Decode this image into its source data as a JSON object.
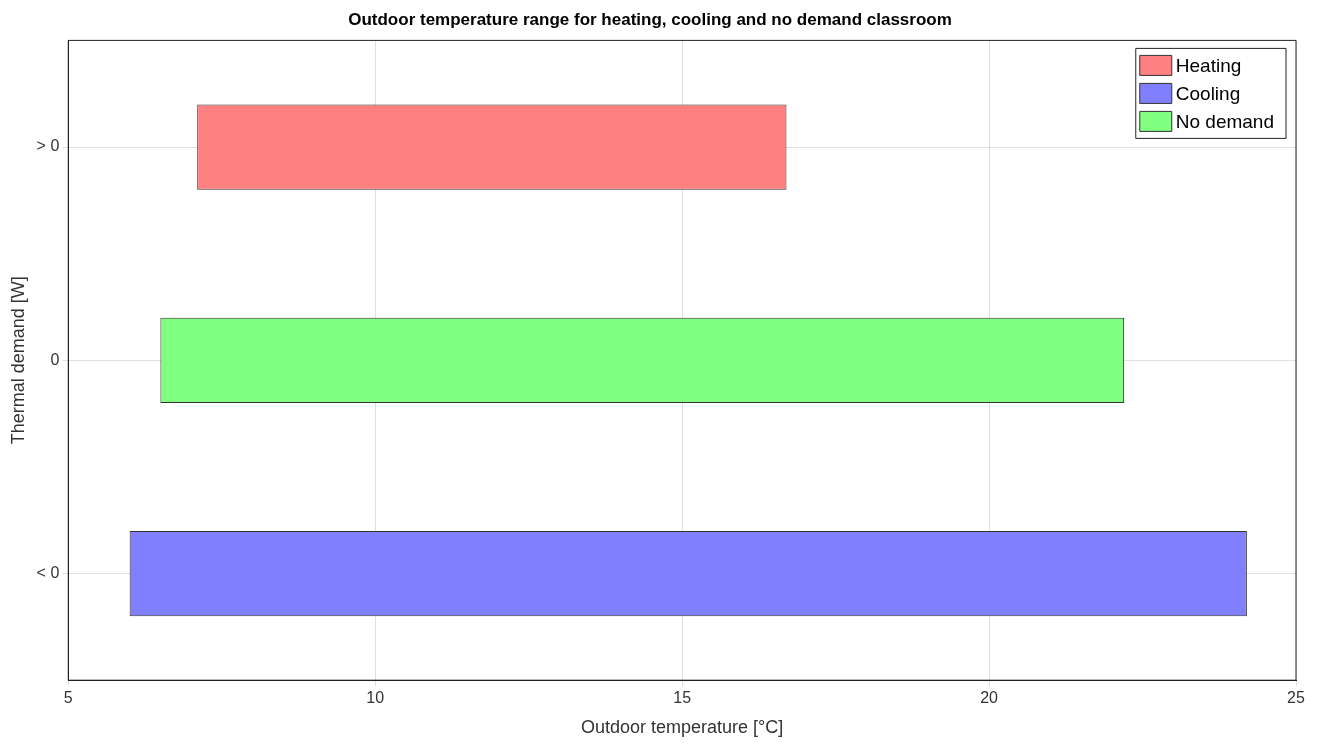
{
  "chart_data": {
    "type": "bar",
    "orientation": "horizontal",
    "title": "Outdoor temperature range for heating, cooling and no demand classroom",
    "xlabel": "Outdoor temperature [°C]",
    "ylabel": "Thermal demand [W]",
    "categories": [
      "> 0",
      "0",
      "< 0"
    ],
    "series": [
      {
        "name": "Heating",
        "color": "#ff8080",
        "base": [
          7.1,
          null,
          null
        ],
        "values": [
          9.6,
          null,
          null
        ]
      },
      {
        "name": "Cooling",
        "color": "#8080ff",
        "base": [
          null,
          null,
          6.0
        ],
        "values": [
          null,
          null,
          18.2
        ]
      },
      {
        "name": "No demand",
        "color": "#80ff80",
        "base": [
          null,
          6.5,
          null
        ],
        "values": [
          null,
          15.7,
          null
        ]
      }
    ],
    "xlim": [
      5,
      25
    ],
    "xticks": [
      5,
      10,
      15,
      20,
      25
    ],
    "grid": true,
    "legend": "top right"
  }
}
